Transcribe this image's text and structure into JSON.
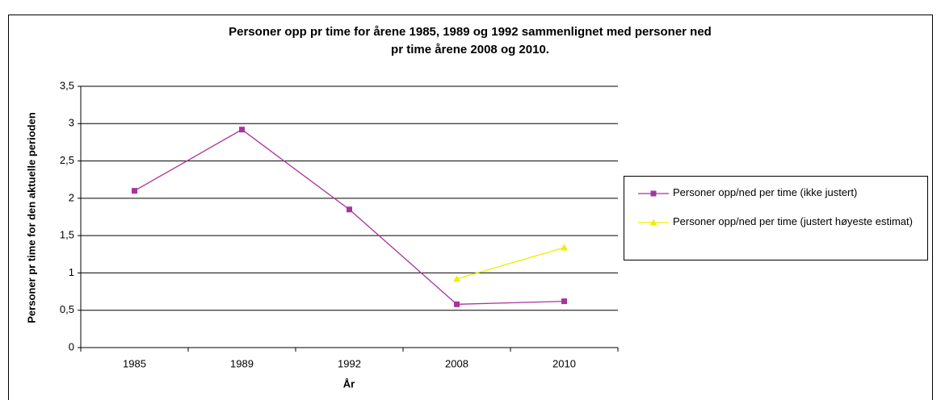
{
  "chart_data": {
    "type": "line",
    "title": [
      "Personer opp pr time for årene 1985, 1989 og 1992 sammenlignet med personer ned",
      "pr time årene 2008 og 2010."
    ],
    "x_label": "År",
    "y_label": "Personer pr time for den aktuelle perioden",
    "categories": [
      "1985",
      "1989",
      "1992",
      "2008",
      "2010"
    ],
    "series": [
      {
        "name": "Personer opp/ned per time (ikke justert)",
        "color": "#a8339c",
        "marker": "square",
        "values": [
          2.1,
          2.92,
          1.85,
          0.58,
          0.62
        ]
      },
      {
        "name": "Personer opp/ned per time (justert høyeste estimat)",
        "color": "#eeee00",
        "marker": "triangle",
        "values": [
          null,
          null,
          null,
          0.92,
          1.34
        ]
      }
    ],
    "ylim": [
      0,
      3.5
    ],
    "yticks": [
      0,
      {
        "value": 0.5,
        "label": "0,5"
      },
      1,
      {
        "value": 1.5,
        "label": "1,5"
      },
      2,
      {
        "value": 2.5,
        "label": "2,5"
      },
      3,
      {
        "value": 3.5,
        "label": "3,5"
      }
    ],
    "grid": true,
    "legend": "right"
  }
}
